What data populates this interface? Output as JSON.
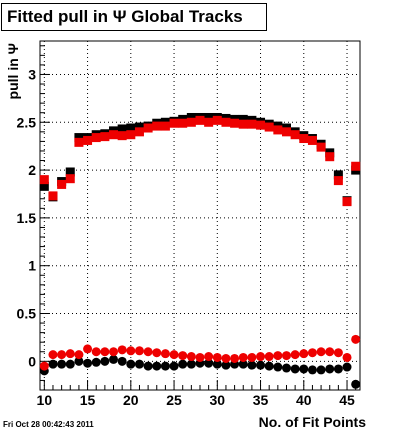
{
  "chart_data": {
    "type": "scatter",
    "title": "Fitted pull in  Ψ   Global Tracks",
    "xlabel": "No. of Fit Points",
    "ylabel": "pull in Ψ",
    "xlim": [
      9.5,
      46.5
    ],
    "ylim": [
      -0.3,
      3.35
    ],
    "xticks": [
      10,
      15,
      20,
      25,
      30,
      35,
      40,
      45
    ],
    "yticks": [
      0,
      0.5,
      1,
      1.5,
      2,
      2.5,
      3
    ],
    "grid": true,
    "x": [
      10,
      11,
      12,
      13,
      14,
      15,
      16,
      17,
      18,
      19,
      20,
      21,
      22,
      23,
      24,
      25,
      26,
      27,
      28,
      29,
      30,
      31,
      32,
      33,
      34,
      35,
      36,
      37,
      38,
      39,
      40,
      41,
      42,
      43,
      44,
      45,
      46
    ],
    "series": [
      {
        "marker": "square",
        "color": "#000000",
        "values": [
          1.83,
          1.72,
          1.88,
          1.98,
          2.34,
          2.34,
          2.37,
          2.38,
          2.41,
          2.43,
          2.44,
          2.45,
          2.46,
          2.49,
          2.5,
          2.51,
          2.53,
          2.55,
          2.55,
          2.55,
          2.55,
          2.54,
          2.53,
          2.53,
          2.52,
          2.5,
          2.48,
          2.46,
          2.44,
          2.4,
          2.36,
          2.33,
          2.27,
          2.18,
          1.95,
          1.68,
          2.0
        ]
      },
      {
        "marker": "square",
        "color": "#ee0000",
        "values": [
          1.9,
          1.73,
          1.85,
          1.91,
          2.29,
          2.31,
          2.34,
          2.35,
          2.37,
          2.36,
          2.37,
          2.4,
          2.44,
          2.46,
          2.46,
          2.49,
          2.49,
          2.5,
          2.52,
          2.5,
          2.52,
          2.5,
          2.49,
          2.48,
          2.48,
          2.47,
          2.45,
          2.42,
          2.4,
          2.37,
          2.33,
          2.31,
          2.24,
          2.14,
          1.89,
          1.67,
          2.04
        ]
      },
      {
        "marker": "circle",
        "color": "#000000",
        "values": [
          -0.1,
          -0.03,
          -0.03,
          -0.03,
          0.0,
          -0.02,
          -0.01,
          0.0,
          0.02,
          0.0,
          -0.03,
          -0.03,
          -0.05,
          -0.05,
          -0.05,
          -0.05,
          -0.03,
          -0.03,
          -0.02,
          -0.02,
          -0.03,
          -0.04,
          -0.03,
          -0.03,
          -0.04,
          -0.04,
          -0.05,
          -0.06,
          -0.07,
          -0.08,
          -0.08,
          -0.09,
          -0.09,
          -0.08,
          -0.08,
          -0.06,
          -0.24
        ]
      },
      {
        "marker": "circle",
        "color": "#ee0000",
        "values": [
          -0.05,
          0.07,
          0.07,
          0.08,
          0.07,
          0.13,
          0.1,
          0.1,
          0.1,
          0.12,
          0.11,
          0.11,
          0.1,
          0.09,
          0.08,
          0.07,
          0.06,
          0.05,
          0.04,
          0.05,
          0.04,
          0.03,
          0.03,
          0.04,
          0.04,
          0.05,
          0.05,
          0.06,
          0.06,
          0.07,
          0.08,
          0.09,
          0.1,
          0.1,
          0.09,
          0.04,
          0.23
        ]
      }
    ]
  },
  "footer": "Fri Oct 28 00:42:43 2011"
}
